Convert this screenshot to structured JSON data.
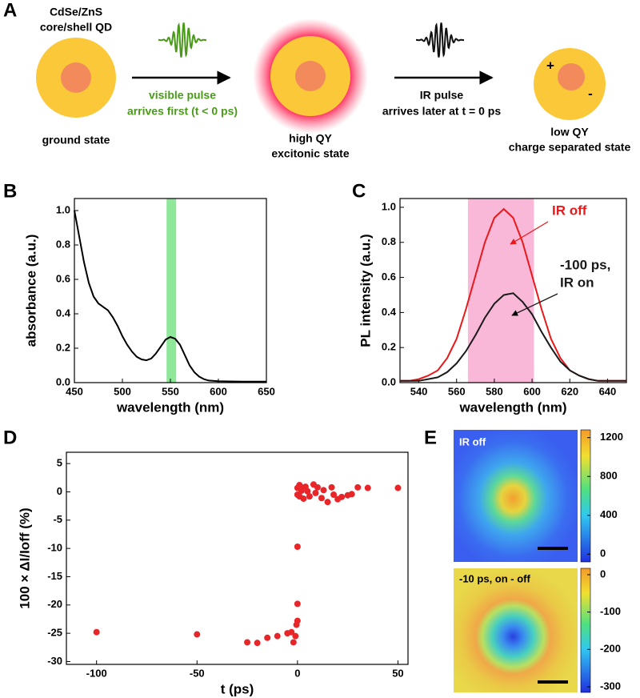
{
  "panel_labels": [
    "A",
    "B",
    "C",
    "D",
    "E"
  ],
  "panel_a": {
    "qd_lines": [
      "CdSe/ZnS",
      "core/shell QD"
    ],
    "ground": "ground state",
    "visible_lines": [
      "visible pulse",
      "arrives first (t < 0 ps)"
    ],
    "excited_lines": [
      "high QY",
      "excitonic state"
    ],
    "ir_lines": [
      "IR pulse",
      "arrives later at t = 0 ps"
    ],
    "plus": "+",
    "minus": "-",
    "separated_lines": [
      "low QY",
      "charge separated state"
    ]
  },
  "chart_data": [
    {
      "type": "line",
      "xlabel": "wavelength (nm)",
      "ylabel": "absorbance (a.u.)",
      "xlim": [
        450,
        650
      ],
      "ylim": [
        0,
        1.07
      ],
      "xticks": [
        450,
        500,
        550,
        600,
        650
      ],
      "yticks": [
        {
          "value": 0,
          "label": "0.0"
        },
        0.2,
        0.4,
        0.6,
        0.8,
        {
          "value": 1,
          "label": "1.0"
        }
      ],
      "span": [
        546,
        556
      ],
      "span_color": "#8fe89a",
      "x": [
        450,
        455,
        460,
        465,
        470,
        475,
        480,
        485,
        490,
        495,
        500,
        505,
        510,
        515,
        520,
        525,
        530,
        535,
        540,
        545,
        550,
        555,
        560,
        565,
        570,
        575,
        580,
        585,
        590,
        600,
        625,
        650
      ],
      "series": [
        {
          "color": "#000000",
          "values": [
            1.0,
            0.85,
            0.7,
            0.58,
            0.5,
            0.46,
            0.44,
            0.42,
            0.38,
            0.33,
            0.27,
            0.22,
            0.18,
            0.15,
            0.135,
            0.13,
            0.14,
            0.17,
            0.21,
            0.25,
            0.265,
            0.255,
            0.22,
            0.16,
            0.1,
            0.06,
            0.035,
            0.02,
            0.012,
            0.008,
            0.006,
            0.006
          ]
        }
      ]
    },
    {
      "type": "line",
      "xlabel": "wavelength (nm)",
      "ylabel": "PL intensity (a.u.)",
      "xlim": [
        530,
        650
      ],
      "ylim": [
        0,
        1.05
      ],
      "xticks": [
        540,
        560,
        580,
        600,
        620,
        640
      ],
      "yticks": [
        {
          "value": 0,
          "label": "0.0"
        },
        0.2,
        0.4,
        0.6,
        0.8,
        {
          "value": 1,
          "label": "1.0"
        }
      ],
      "span": [
        566,
        601
      ],
      "span_color": "#f9b8d8",
      "x": [
        530,
        535,
        540,
        545,
        550,
        555,
        560,
        565,
        570,
        575,
        580,
        585,
        590,
        595,
        600,
        605,
        610,
        615,
        620,
        625,
        630,
        635,
        640,
        645,
        650
      ],
      "series": [
        {
          "color": "#e8191b",
          "label_lines": [
            "IR off"
          ],
          "values": [
            0.01,
            0.01,
            0.02,
            0.04,
            0.07,
            0.14,
            0.25,
            0.42,
            0.61,
            0.8,
            0.94,
            0.99,
            0.94,
            0.8,
            0.61,
            0.42,
            0.25,
            0.14,
            0.07,
            0.04,
            0.02,
            0.01,
            0.01,
            0.01,
            0.01
          ]
        },
        {
          "color": "#1a1a1a",
          "label_lines": [
            "-100 ps,",
            "IR on"
          ],
          "values": [
            0.01,
            0.01,
            0.01,
            0.02,
            0.03,
            0.06,
            0.11,
            0.18,
            0.27,
            0.37,
            0.45,
            0.5,
            0.51,
            0.46,
            0.39,
            0.29,
            0.2,
            0.12,
            0.07,
            0.04,
            0.02,
            0.01,
            0.01,
            0.01,
            0.01
          ]
        }
      ]
    },
    {
      "type": "scatter",
      "xlabel": "t (ps)",
      "ylabel": "100 × ΔI/Ioff (%)",
      "xlim": [
        -115,
        55
      ],
      "ylim": [
        -30.5,
        7
      ],
      "xticks": [
        -100,
        -50,
        0,
        50
      ],
      "yticks": [
        -30,
        -25,
        -20,
        -15,
        -10,
        -5,
        0,
        5
      ],
      "color": "#e8262a",
      "x": [
        -100,
        -50,
        -25,
        -20,
        -15,
        -10,
        -5,
        -3,
        -2,
        -1,
        -0.5,
        0,
        0,
        0,
        0,
        0,
        1,
        1,
        2,
        2,
        3,
        4,
        5,
        6,
        8,
        9,
        10,
        12,
        13,
        15,
        17,
        18,
        20,
        22,
        25,
        27,
        30,
        35,
        50
      ],
      "values": [
        -24.8,
        -25.2,
        -26.6,
        -26.7,
        -25.8,
        -25.5,
        -25,
        -24.8,
        -26.6,
        -25.5,
        -23.5,
        -22.8,
        -19.8,
        -9.7,
        -0.5,
        0.7,
        1.2,
        -0.8,
        0.8,
        0.2,
        -1.2,
        0.9,
        0.1,
        -0.8,
        1.3,
        -0.2,
        0.8,
        -1.1,
        0.3,
        -1.8,
        0.8,
        -0.5,
        -1.3,
        -0.9,
        -0.6,
        -0.4,
        0.8,
        0.7,
        0.7
      ]
    }
  ],
  "panel_e": [
    {
      "label": "IR off",
      "lim": [
        -80,
        1280
      ],
      "ticks": [
        0,
        400,
        800,
        1200
      ]
    },
    {
      "label": "-10 ps, on - off",
      "lim": [
        -315,
        17
      ],
      "ticks": [
        0,
        -100,
        -200,
        -300
      ]
    }
  ]
}
